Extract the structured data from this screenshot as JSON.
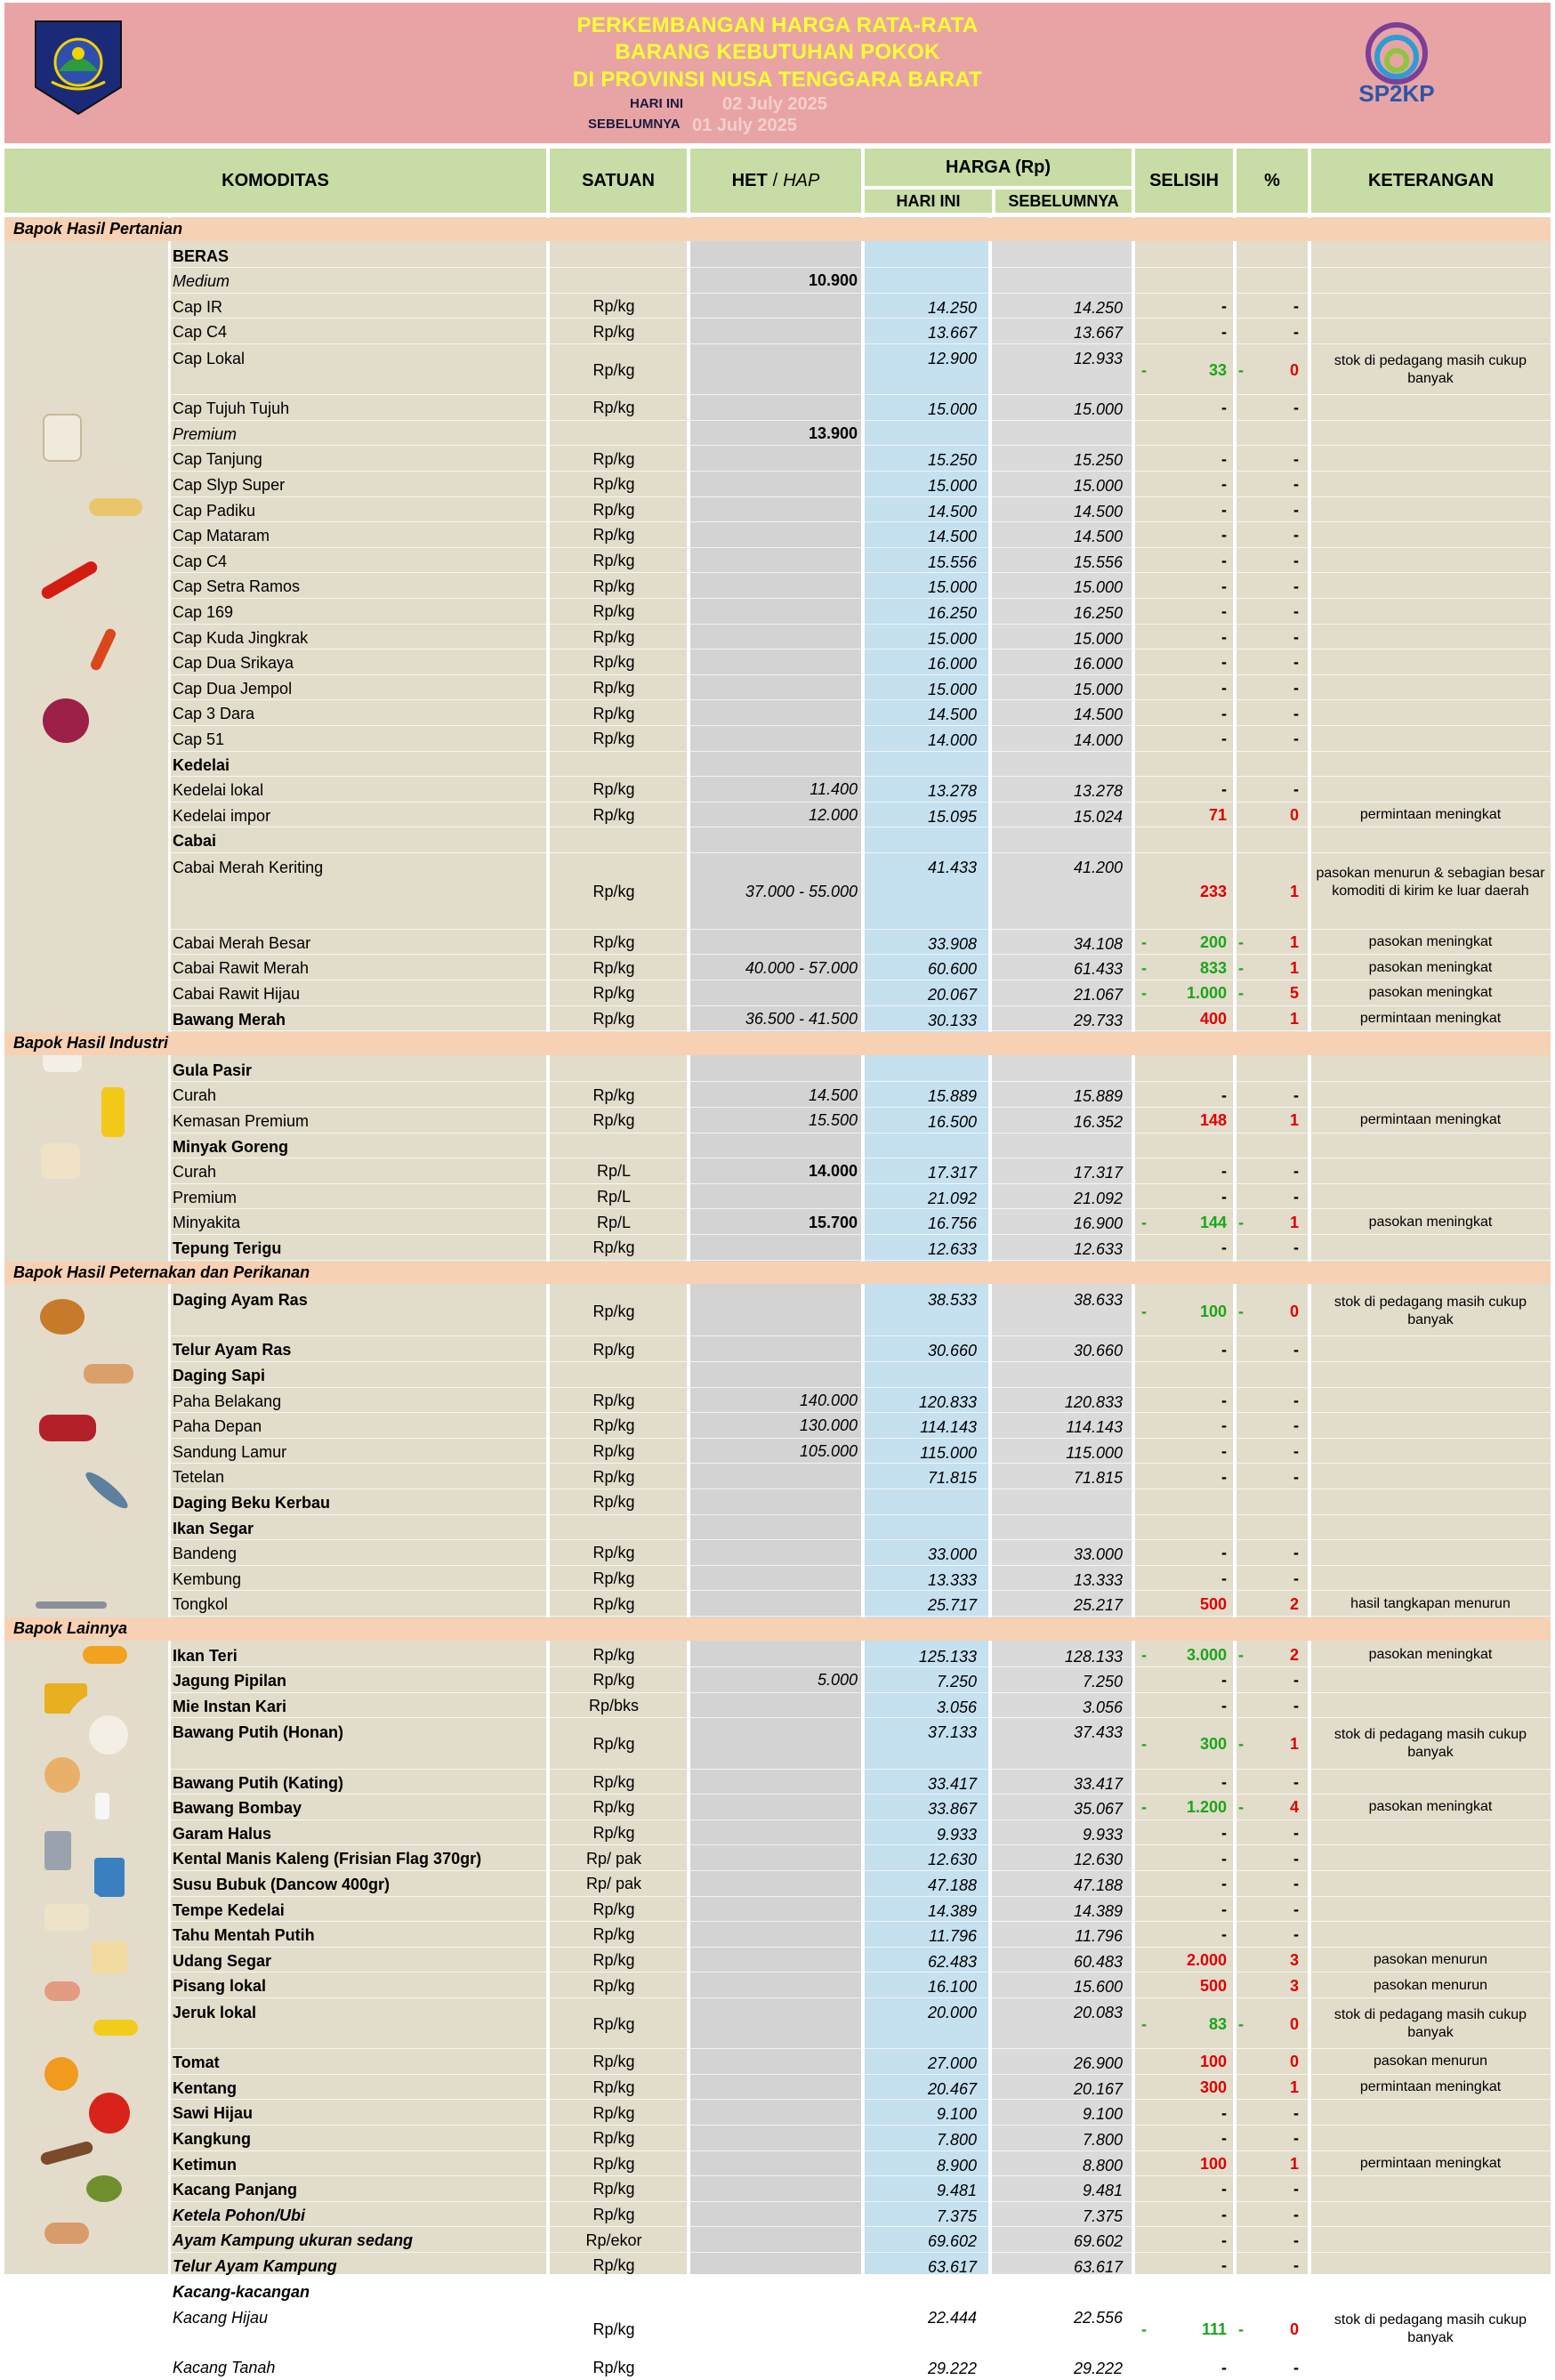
{
  "header": {
    "title_lines": [
      "PERKEMBANGAN HARGA RATA-RATA",
      "BARANG KEBUTUHAN POKOK",
      "DI PROVINSI NUSA TENGGARA BARAT"
    ],
    "today_label": "HARI INI",
    "today_date": "02 July 2025",
    "previous_label": "SEBELUMNYA",
    "previous_date": "01 July 2025",
    "logo_right_text": "SP2KP"
  },
  "columns": {
    "komoditas": "KOMODITAS",
    "satuan": "SATUAN",
    "het": "HET",
    "het_sep": "/",
    "hap": "HAP",
    "harga": "HARGA (Rp)",
    "hari_ini": "HARI INI",
    "sebelumnya": "SEBELUMNYA",
    "selisih": "SELISIH",
    "persen": "%",
    "keterangan": "KETERANGAN"
  },
  "colors": {
    "banner": "#e8a4a4",
    "title": "#ffff33",
    "header_bg": "#c8dca6",
    "category_bg": "#f7d1b4",
    "body_bg": "#e2dccb",
    "het_bg": "#d3d3d3",
    "today_bg": "#c5e0ef",
    "prev_bg": "#dadada",
    "increase": "#e00000",
    "decrease": "#19a619"
  },
  "rows": [
    {
      "t": "cat",
      "name": "Bapok Hasil Pertanian"
    },
    {
      "t": "grp",
      "name": "BERAS"
    },
    {
      "t": "sub",
      "name": "Medium",
      "het": "10.900"
    },
    {
      "name": "Cap IR",
      "unit": "Rp/kg",
      "today": "14.250",
      "prev": "14.250",
      "sel": "-",
      "pct": "-"
    },
    {
      "name": "Cap C4",
      "unit": "Rp/kg",
      "today": "13.667",
      "prev": "13.667",
      "sel": "-",
      "pct": "-"
    },
    {
      "name": "Cap Lokal",
      "unit": "Rp/kg",
      "today": "12.900",
      "prev": "12.933",
      "sel": "33",
      "pct": "0",
      "dir": "down",
      "ket": "stok di pedagang masih cukup banyak",
      "h": 2
    },
    {
      "name": "Cap Tujuh Tujuh",
      "unit": "Rp/kg",
      "today": "15.000",
      "prev": "15.000",
      "sel": "-",
      "pct": "-"
    },
    {
      "t": "sub",
      "name": "Premium",
      "het": "13.900"
    },
    {
      "name": "Cap Tanjung",
      "unit": "Rp/kg",
      "today": "15.250",
      "prev": "15.250",
      "sel": "-",
      "pct": "-"
    },
    {
      "name": "Cap Slyp Super",
      "unit": "Rp/kg",
      "today": "15.000",
      "prev": "15.000",
      "sel": "-",
      "pct": "-"
    },
    {
      "name": "Cap Padiku",
      "unit": "Rp/kg",
      "today": "14.500",
      "prev": "14.500",
      "sel": "-",
      "pct": "-"
    },
    {
      "name": "Cap Mataram",
      "unit": "Rp/kg",
      "today": "14.500",
      "prev": "14.500",
      "sel": "-",
      "pct": "-"
    },
    {
      "name": "Cap C4",
      "unit": "Rp/kg",
      "today": "15.556",
      "prev": "15.556",
      "sel": "-",
      "pct": "-"
    },
    {
      "name": "Cap Setra Ramos",
      "unit": "Rp/kg",
      "today": "15.000",
      "prev": "15.000",
      "sel": "-",
      "pct": "-"
    },
    {
      "name": "Cap 169",
      "unit": "Rp/kg",
      "today": "16.250",
      "prev": "16.250",
      "sel": "-",
      "pct": "-"
    },
    {
      "name": "Cap Kuda Jingkrak",
      "unit": "Rp/kg",
      "today": "15.000",
      "prev": "15.000",
      "sel": "-",
      "pct": "-"
    },
    {
      "name": "Cap Dua Srikaya",
      "unit": "Rp/kg",
      "today": "16.000",
      "prev": "16.000",
      "sel": "-",
      "pct": "-"
    },
    {
      "name": "Cap Dua Jempol",
      "unit": "Rp/kg",
      "today": "15.000",
      "prev": "15.000",
      "sel": "-",
      "pct": "-"
    },
    {
      "name": "Cap 3 Dara",
      "unit": "Rp/kg",
      "today": "14.500",
      "prev": "14.500",
      "sel": "-",
      "pct": "-"
    },
    {
      "name": "Cap 51",
      "unit": "Rp/kg",
      "today": "14.000",
      "prev": "14.000",
      "sel": "-",
      "pct": "-"
    },
    {
      "t": "grp",
      "name": "Kedelai"
    },
    {
      "name": "Kedelai lokal",
      "unit": "Rp/kg",
      "het": "11.400",
      "today": "13.278",
      "prev": "13.278",
      "sel": "-",
      "pct": "-"
    },
    {
      "name": "Kedelai impor",
      "unit": "Rp/kg",
      "het": "12.000",
      "today": "15.095",
      "prev": "15.024",
      "sel": "71",
      "pct": "0",
      "dir": "up",
      "ket": "permintaan meningkat"
    },
    {
      "t": "grp",
      "name": "Cabai"
    },
    {
      "name": "Cabai Merah Keriting",
      "unit": "Rp/kg",
      "het": "37.000 - 55.000",
      "today": "41.433",
      "prev": "41.200",
      "sel": "233",
      "pct": "1",
      "dir": "up",
      "ket": "pasokan menurun & sebagian besar komoditi di kirim ke luar daerah",
      "h": 3
    },
    {
      "name": "Cabai Merah Besar",
      "unit": "Rp/kg",
      "today": "33.908",
      "prev": "34.108",
      "sel": "200",
      "pct": "1",
      "dir": "down",
      "ket": "pasokan meningkat"
    },
    {
      "name": "Cabai Rawit Merah",
      "unit": "Rp/kg",
      "het": "40.000 - 57.000",
      "today": "60.600",
      "prev": "61.433",
      "sel": "833",
      "pct": "1",
      "dir": "down",
      "ket": "pasokan meningkat"
    },
    {
      "name": "Cabai Rawit Hijau",
      "unit": "Rp/kg",
      "today": "20.067",
      "prev": "21.067",
      "sel": "1.000",
      "pct": "5",
      "dir": "down",
      "ket": "pasokan meningkat"
    },
    {
      "name": "Bawang Merah",
      "bold": true,
      "unit": "Rp/kg",
      "het": "36.500 - 41.500",
      "today": "30.133",
      "prev": "29.733",
      "sel": "400",
      "pct": "1",
      "dir": "up",
      "ket": "permintaan meningkat"
    },
    {
      "t": "cat",
      "name": "Bapok Hasil Industri"
    },
    {
      "t": "grp",
      "name": "Gula Pasir"
    },
    {
      "name": "Curah",
      "unit": "Rp/kg",
      "het": "14.500",
      "today": "15.889",
      "prev": "15.889",
      "sel": "-",
      "pct": "-"
    },
    {
      "name": "Kemasan Premium",
      "unit": "Rp/kg",
      "het": "15.500",
      "today": "16.500",
      "prev": "16.352",
      "sel": "148",
      "pct": "1",
      "dir": "up",
      "ket": "permintaan meningkat"
    },
    {
      "t": "grp",
      "name": "Minyak Goreng"
    },
    {
      "name": "Curah",
      "unit": "Rp/L",
      "het": "14.000",
      "hetb": true,
      "today": "17.317",
      "prev": "17.317",
      "sel": "-",
      "pct": "-"
    },
    {
      "name": "Premium",
      "unit": "Rp/L",
      "today": "21.092",
      "prev": "21.092",
      "sel": "-",
      "pct": "-"
    },
    {
      "name": "Minyakita",
      "unit": "Rp/L",
      "het": "15.700",
      "hetb": true,
      "today": "16.756",
      "prev": "16.900",
      "sel": "144",
      "pct": "1",
      "dir": "down",
      "ket": "pasokan meningkat"
    },
    {
      "name": "Tepung Terigu",
      "bold": true,
      "unit": "Rp/kg",
      "today": "12.633",
      "prev": "12.633",
      "sel": "-",
      "pct": "-"
    },
    {
      "t": "cat",
      "name": "Bapok Hasil Peternakan dan Perikanan"
    },
    {
      "name": "Daging Ayam Ras",
      "bold": true,
      "unit": "Rp/kg",
      "today": "38.533",
      "prev": "38.633",
      "sel": "100",
      "pct": "0",
      "dir": "down",
      "ket": "stok di pedagang masih cukup banyak",
      "h": 2
    },
    {
      "name": "Telur Ayam Ras",
      "bold": true,
      "unit": "Rp/kg",
      "today": "30.660",
      "prev": "30.660",
      "sel": "-",
      "pct": "-"
    },
    {
      "t": "grp",
      "name": "Daging Sapi"
    },
    {
      "name": "Paha Belakang",
      "unit": "Rp/kg",
      "het": "140.000",
      "today": "120.833",
      "prev": "120.833",
      "sel": "-",
      "pct": "-"
    },
    {
      "name": "Paha Depan",
      "unit": "Rp/kg",
      "het": "130.000",
      "today": "114.143",
      "prev": "114.143",
      "sel": "-",
      "pct": "-"
    },
    {
      "name": "Sandung Lamur",
      "unit": "Rp/kg",
      "het": "105.000",
      "today": "115.000",
      "prev": "115.000",
      "sel": "-",
      "pct": "-"
    },
    {
      "name": "Tetelan",
      "unit": "Rp/kg",
      "today": "71.815",
      "prev": "71.815",
      "sel": "-",
      "pct": "-"
    },
    {
      "name": "Daging Beku Kerbau",
      "bold": true,
      "unit": "Rp/kg"
    },
    {
      "t": "grp",
      "name": "Ikan Segar"
    },
    {
      "name": "Bandeng",
      "unit": "Rp/kg",
      "today": "33.000",
      "prev": "33.000",
      "sel": "-",
      "pct": "-"
    },
    {
      "name": "Kembung",
      "unit": "Rp/kg",
      "today": "13.333",
      "prev": "13.333",
      "sel": "-",
      "pct": "-"
    },
    {
      "name": "Tongkol",
      "unit": "Rp/kg",
      "today": "25.717",
      "prev": "25.217",
      "sel": "500",
      "pct": "2",
      "dir": "up",
      "ket": "hasil tangkapan menurun"
    },
    {
      "t": "cat",
      "name": "Bapok Lainnya"
    },
    {
      "name": "Ikan Teri",
      "bold": true,
      "unit": "Rp/kg",
      "today": "125.133",
      "prev": "128.133",
      "sel": "3.000",
      "pct": "2",
      "dir": "down",
      "ket": "pasokan meningkat"
    },
    {
      "name": "Jagung Pipilan",
      "bold": true,
      "unit": "Rp/kg",
      "het": "5.000",
      "today": "7.250",
      "prev": "7.250",
      "sel": "-",
      "pct": "-"
    },
    {
      "name": "Mie Instan Kari",
      "bold": true,
      "unit": "Rp/bks",
      "today": "3.056",
      "prev": "3.056",
      "sel": "-",
      "pct": "-"
    },
    {
      "name": "Bawang Putih (Honan)",
      "bold": true,
      "unit": "Rp/kg",
      "today": "37.133",
      "prev": "37.433",
      "sel": "300",
      "pct": "1",
      "dir": "down",
      "ket": "stok di pedagang masih cukup banyak",
      "h": 2
    },
    {
      "name": "Bawang Putih (Kating)",
      "bold": true,
      "unit": "Rp/kg",
      "today": "33.417",
      "prev": "33.417",
      "sel": "-",
      "pct": "-"
    },
    {
      "name": "Bawang Bombay",
      "bold": true,
      "unit": "Rp/kg",
      "today": "33.867",
      "prev": "35.067",
      "sel": "1.200",
      "pct": "4",
      "dir": "down",
      "ket": "pasokan meningkat"
    },
    {
      "name": "Garam Halus",
      "bold": true,
      "unit": "Rp/kg",
      "today": "9.933",
      "prev": "9.933",
      "sel": "-",
      "pct": "-"
    },
    {
      "name": "Kental Manis Kaleng (Frisian Flag 370gr)",
      "bold": true,
      "unit": "Rp/ pak",
      "today": "12.630",
      "prev": "12.630",
      "sel": "-",
      "pct": "-"
    },
    {
      "name": "Susu Bubuk (Dancow 400gr)",
      "bold": true,
      "unit": "Rp/ pak",
      "today": "47.188",
      "prev": "47.188",
      "sel": "-",
      "pct": "-"
    },
    {
      "name": "Tempe Kedelai",
      "bold": true,
      "unit": "Rp/kg",
      "today": "14.389",
      "prev": "14.389",
      "sel": "-",
      "pct": "-"
    },
    {
      "name": "Tahu Mentah Putih",
      "bold": true,
      "unit": "Rp/kg",
      "today": "11.796",
      "prev": "11.796",
      "sel": "-",
      "pct": "-"
    },
    {
      "name": "Udang Segar",
      "bold": true,
      "unit": "Rp/kg",
      "today": "62.483",
      "prev": "60.483",
      "sel": "2.000",
      "pct": "3",
      "dir": "up",
      "ket": "pasokan menurun"
    },
    {
      "name": "Pisang lokal",
      "bold": true,
      "unit": "Rp/kg",
      "today": "16.100",
      "prev": "15.600",
      "sel": "500",
      "pct": "3",
      "dir": "up",
      "ket": "pasokan menurun"
    },
    {
      "name": "Jeruk lokal",
      "bold": true,
      "unit": "Rp/kg",
      "today": "20.000",
      "prev": "20.083",
      "sel": "83",
      "pct": "0",
      "dir": "down",
      "ket": "stok di pedagang masih cukup banyak",
      "h": 2
    },
    {
      "name": "Tomat",
      "bold": true,
      "unit": "Rp/kg",
      "today": "27.000",
      "prev": "26.900",
      "sel": "100",
      "pct": "0",
      "dir": "up",
      "ket": "pasokan menurun"
    },
    {
      "name": "Kentang",
      "bold": true,
      "unit": "Rp/kg",
      "today": "20.467",
      "prev": "20.167",
      "sel": "300",
      "pct": "1",
      "dir": "up",
      "ket": "permintaan meningkat"
    },
    {
      "name": "Sawi Hijau",
      "bold": true,
      "unit": "Rp/kg",
      "today": "9.100",
      "prev": "9.100",
      "sel": "-",
      "pct": "-"
    },
    {
      "name": "Kangkung",
      "bold": true,
      "unit": "Rp/kg",
      "today": "7.800",
      "prev": "7.800",
      "sel": "-",
      "pct": "-"
    },
    {
      "name": "Ketimun",
      "bold": true,
      "unit": "Rp/kg",
      "today": "8.900",
      "prev": "8.800",
      "sel": "100",
      "pct": "1",
      "dir": "up",
      "ket": "permintaan meningkat"
    },
    {
      "name": "Kacang Panjang",
      "bold": true,
      "unit": "Rp/kg",
      "today": "9.481",
      "prev": "9.481",
      "sel": "-",
      "pct": "-"
    },
    {
      "name": "Ketela Pohon/Ubi",
      "bold": true,
      "italic": true,
      "unit": "Rp/kg",
      "today": "7.375",
      "prev": "7.375",
      "sel": "-",
      "pct": "-"
    },
    {
      "name": "Ayam Kampung ukuran sedang",
      "bold": true,
      "italic": true,
      "unit": "Rp/ekor",
      "today": "69.602",
      "prev": "69.602",
      "sel": "-",
      "pct": "-"
    },
    {
      "name": "Telur Ayam Kampung",
      "bold": true,
      "italic": true,
      "unit": "Rp/kg",
      "today": "63.617",
      "prev": "63.617",
      "sel": "-",
      "pct": "-"
    },
    {
      "t": "grp",
      "name": "Kacang-kacangan",
      "italic": true
    },
    {
      "name": "Kacang Hijau",
      "italic": true,
      "unit": "Rp/kg",
      "today": "22.444",
      "prev": "22.556",
      "sel": "111",
      "pct": "0",
      "dir": "down",
      "ket": "stok di pedagang masih cukup banyak",
      "h": 2
    },
    {
      "name": "Kacang Tanah",
      "italic": true,
      "unit": "Rp/kg",
      "today": "29.222",
      "prev": "29.222",
      "sel": "-",
      "pct": "-"
    }
  ]
}
